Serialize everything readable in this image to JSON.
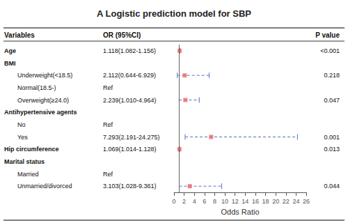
{
  "chart_data": {
    "type": "forest",
    "title": "A Logistic prediction model for SBP",
    "columns": [
      "Variables",
      "OR (95%CI)",
      "P value"
    ],
    "xlabel": "Odds Ratio",
    "xlim": [
      0,
      26
    ],
    "xticks": [
      0,
      2,
      4,
      6,
      8,
      10,
      12,
      14,
      16,
      18,
      20,
      22,
      24,
      26
    ],
    "reference_line": 1.0,
    "grid": false,
    "marker": "square",
    "line_style": "dashed",
    "rows": [
      {
        "label": "Age",
        "value": 1.118,
        "lower": 1.082,
        "upper": 1.156,
        "value_label": "1.118(1.082-1.156)",
        "p_label": "<0.001"
      },
      {
        "label": "BMI",
        "rows": [
          {
            "label": "Underweight(<18.5)",
            "value": 2.112,
            "lower": 0.644,
            "upper": 6.929,
            "value_label": "2.112(0.644-6.929)",
            "p_label": "0.218"
          },
          {
            "label": "Normal(18.5-)",
            "value_label": "Ref"
          },
          {
            "label": "Overweight(≥24.0)",
            "value": 2.239,
            "lower": 1.01,
            "upper": 4.964,
            "value_label": "2.239(1.010-4.964)",
            "p_label": "0.047"
          }
        ]
      },
      {
        "label": "Antihypertensive agents",
        "rows": [
          {
            "label": "No",
            "value_label": "Ref"
          },
          {
            "label": "Yes",
            "value": 7.293,
            "lower": 2.191,
            "upper": 24.275,
            "value_label": "7.293(2.191-24.275)",
            "p_label": "0.001"
          }
        ]
      },
      {
        "label": "Hip circumference",
        "value": 1.069,
        "lower": 1.014,
        "upper": 1.128,
        "value_label": "1.069(1.014-1.128)",
        "p_label": "0.013"
      },
      {
        "label": "Marital status",
        "rows": [
          {
            "label": "Married",
            "value_label": "Ref"
          },
          {
            "label": "Unmarried/divorced",
            "value": 3.103,
            "lower": 1.028,
            "upper": 9.361,
            "value_label": "3.103(1.028-9.361)",
            "p_label": "0.044"
          }
        ]
      }
    ]
  }
}
